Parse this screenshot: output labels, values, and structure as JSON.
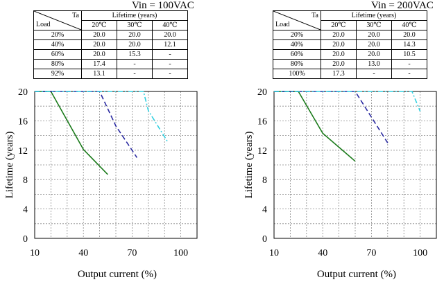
{
  "panels": [
    {
      "vin": "Vin = 100VAC",
      "table": {
        "corner_ta": "Ta",
        "corner_load": "Load",
        "header": "Lifetime (years)",
        "temps": [
          "20℃",
          "30℃",
          "40℃"
        ],
        "rows": [
          {
            "load": "20%",
            "values": [
              "20.0",
              "20.0",
              "20.0"
            ]
          },
          {
            "load": "40%",
            "values": [
              "20.0",
              "20.0",
              "12.1"
            ]
          },
          {
            "load": "60%",
            "values": [
              "20.0",
              "15.3",
              "-"
            ]
          },
          {
            "load": "80%",
            "values": [
              "17.4",
              "-",
              "-"
            ]
          },
          {
            "load": "92%",
            "values": [
              "13.1",
              "-",
              "-"
            ]
          }
        ]
      }
    },
    {
      "vin": "Vin = 200VAC",
      "table": {
        "corner_ta": "Ta",
        "corner_load": "Load",
        "header": "Lifetime (years)",
        "temps": [
          "20℃",
          "30℃",
          "40℃"
        ],
        "rows": [
          {
            "load": "20%",
            "values": [
              "20.0",
              "20.0",
              "20.0"
            ]
          },
          {
            "load": "40%",
            "values": [
              "20.0",
              "20.0",
              "14.3"
            ]
          },
          {
            "load": "60%",
            "values": [
              "20.0",
              "20.0",
              "10.5"
            ]
          },
          {
            "load": "80%",
            "values": [
              "20.0",
              "13.0",
              "-"
            ]
          },
          {
            "load": "100%",
            "values": [
              "17.3",
              "-",
              "-"
            ]
          }
        ]
      }
    }
  ],
  "chart_data": [
    {
      "type": "line",
      "xlabel": "Output current (%)",
      "ylabel": "Lifetime (years)",
      "xlim": [
        10,
        110
      ],
      "ylim": [
        0,
        20
      ],
      "xticks": [
        10,
        40,
        70,
        100
      ],
      "yticks": [
        0,
        4,
        8,
        12,
        16,
        20
      ],
      "grid": true,
      "series": [
        {
          "color": "#1a7a1a",
          "dash": "solid",
          "points": [
            [
              10,
              20
            ],
            [
              20,
              20
            ],
            [
              40,
              12.1
            ],
            [
              55,
              8.7
            ]
          ]
        },
        {
          "color": "#2a2aa0",
          "dash": "dashed",
          "points": [
            [
              10,
              20
            ],
            [
              50,
              20
            ],
            [
              60,
              15.3
            ],
            [
              73,
              11.0
            ]
          ]
        },
        {
          "color": "#30d0e0",
          "dash": "dashdot",
          "points": [
            [
              10,
              20
            ],
            [
              77,
              20
            ],
            [
              80,
              17.4
            ],
            [
              92,
              13.1
            ]
          ]
        }
      ]
    },
    {
      "type": "line",
      "xlabel": "Output current (%)",
      "ylabel": "Lifetime (years)",
      "xlim": [
        10,
        110
      ],
      "ylim": [
        0,
        20
      ],
      "xticks": [
        10,
        40,
        70,
        100
      ],
      "yticks": [
        0,
        4,
        8,
        12,
        16,
        20
      ],
      "grid": true,
      "series": [
        {
          "color": "#1a7a1a",
          "dash": "solid",
          "points": [
            [
              10,
              20
            ],
            [
              25,
              20
            ],
            [
              40,
              14.3
            ],
            [
              60,
              10.5
            ]
          ]
        },
        {
          "color": "#2a2aa0",
          "dash": "dashed",
          "points": [
            [
              10,
              20
            ],
            [
              60,
              20
            ],
            [
              80,
              13.0
            ]
          ]
        },
        {
          "color": "#30d0e0",
          "dash": "dashdot",
          "points": [
            [
              10,
              20
            ],
            [
              95,
              20
            ],
            [
              100,
              17.3
            ]
          ]
        }
      ]
    }
  ]
}
